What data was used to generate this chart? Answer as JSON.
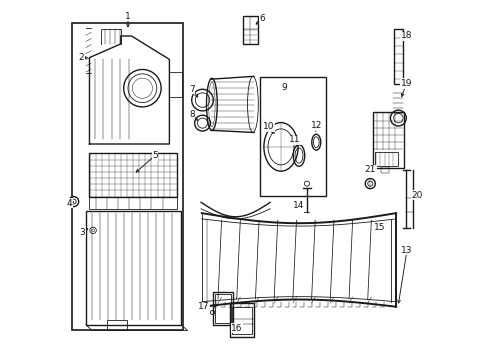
{
  "bg_color": "#ffffff",
  "lc": "#1a1a1a",
  "labels_data": {
    "1": [
      0.175,
      0.955,
      0.175,
      0.915
    ],
    "2": [
      0.045,
      0.84,
      0.072,
      0.84
    ],
    "3": [
      0.048,
      0.355,
      0.072,
      0.37
    ],
    "4": [
      0.013,
      0.435,
      0.027,
      0.44
    ],
    "5": [
      0.25,
      0.568,
      0.19,
      0.515
    ],
    "6": [
      0.548,
      0.948,
      0.523,
      0.926
    ],
    "7": [
      0.353,
      0.752,
      0.375,
      0.722
    ],
    "8": [
      0.353,
      0.682,
      0.375,
      0.658
    ],
    "9": [
      0.608,
      0.758,
      0.615,
      0.75
    ],
    "10": [
      0.565,
      0.648,
      0.588,
      0.622
    ],
    "11": [
      0.638,
      0.612,
      0.65,
      0.585
    ],
    "12": [
      0.698,
      0.65,
      0.695,
      0.625
    ],
    "13": [
      0.95,
      0.305,
      0.925,
      0.148
    ],
    "14": [
      0.648,
      0.428,
      0.668,
      0.442
    ],
    "15": [
      0.875,
      0.368,
      0.882,
      0.352
    ],
    "16": [
      0.478,
      0.088,
      0.49,
      0.108
    ],
    "17": [
      0.385,
      0.148,
      0.43,
      0.152
    ],
    "18": [
      0.948,
      0.9,
      0.928,
      0.88
    ],
    "19": [
      0.948,
      0.768,
      0.932,
      0.722
    ],
    "20": [
      0.978,
      0.458,
      0.968,
      0.458
    ],
    "21": [
      0.848,
      0.528,
      0.848,
      0.508
    ]
  }
}
